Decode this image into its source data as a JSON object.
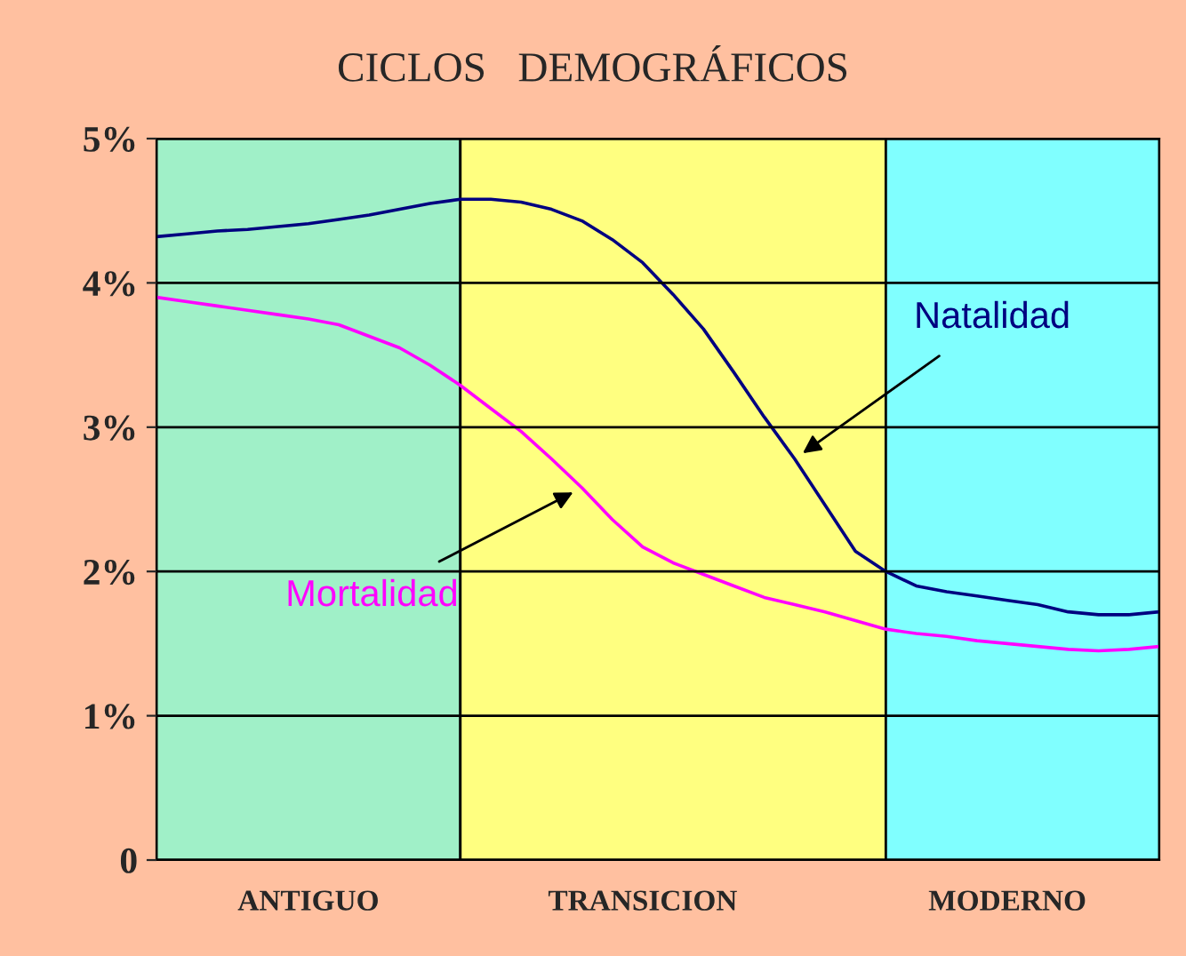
{
  "chart_data": {
    "type": "line",
    "title": "CICLOS   DEMOGRÁFICOS",
    "categories": [
      null,
      null,
      null,
      null,
      null,
      "ANTIGUO",
      null,
      null,
      null,
      null,
      null,
      null,
      null,
      null,
      null,
      null,
      "TRANSICION",
      null,
      null,
      null,
      null,
      null,
      null,
      null,
      null,
      null,
      null,
      null,
      "MODERNO",
      null,
      null,
      null,
      null,
      null
    ],
    "ylim": [
      0,
      5
    ],
    "yticks": [
      {
        "value": 0,
        "label": "0"
      },
      {
        "value": 1,
        "label": "1%"
      },
      {
        "value": 2,
        "label": "2%"
      },
      {
        "value": 3,
        "label": "3%"
      },
      {
        "value": 4,
        "label": "4%"
      },
      {
        "value": 5,
        "label": "5%"
      }
    ],
    "grid": "y",
    "legend": false,
    "series": [
      {
        "name": "Natalidad",
        "color": "#000080",
        "values": [
          4.32,
          4.34,
          4.36,
          4.37,
          4.39,
          4.41,
          4.44,
          4.47,
          4.51,
          4.55,
          4.58,
          4.58,
          4.56,
          4.51,
          4.43,
          4.3,
          4.14,
          3.92,
          3.68,
          3.38,
          3.07,
          2.78,
          2.46,
          2.14,
          2.0,
          1.9,
          1.86,
          1.83,
          1.8,
          1.77,
          1.72,
          1.7,
          1.7,
          1.72
        ]
      },
      {
        "name": "Mortalidad",
        "color": "#ff00ff",
        "values": [
          3.9,
          3.87,
          3.84,
          3.81,
          3.78,
          3.75,
          3.71,
          3.63,
          3.55,
          3.43,
          3.29,
          3.13,
          2.97,
          2.78,
          2.58,
          2.36,
          2.17,
          2.06,
          1.98,
          1.9,
          1.82,
          1.77,
          1.72,
          1.66,
          1.6,
          1.57,
          1.55,
          1.52,
          1.5,
          1.48,
          1.46,
          1.45,
          1.46,
          1.48
        ]
      }
    ]
  }
}
